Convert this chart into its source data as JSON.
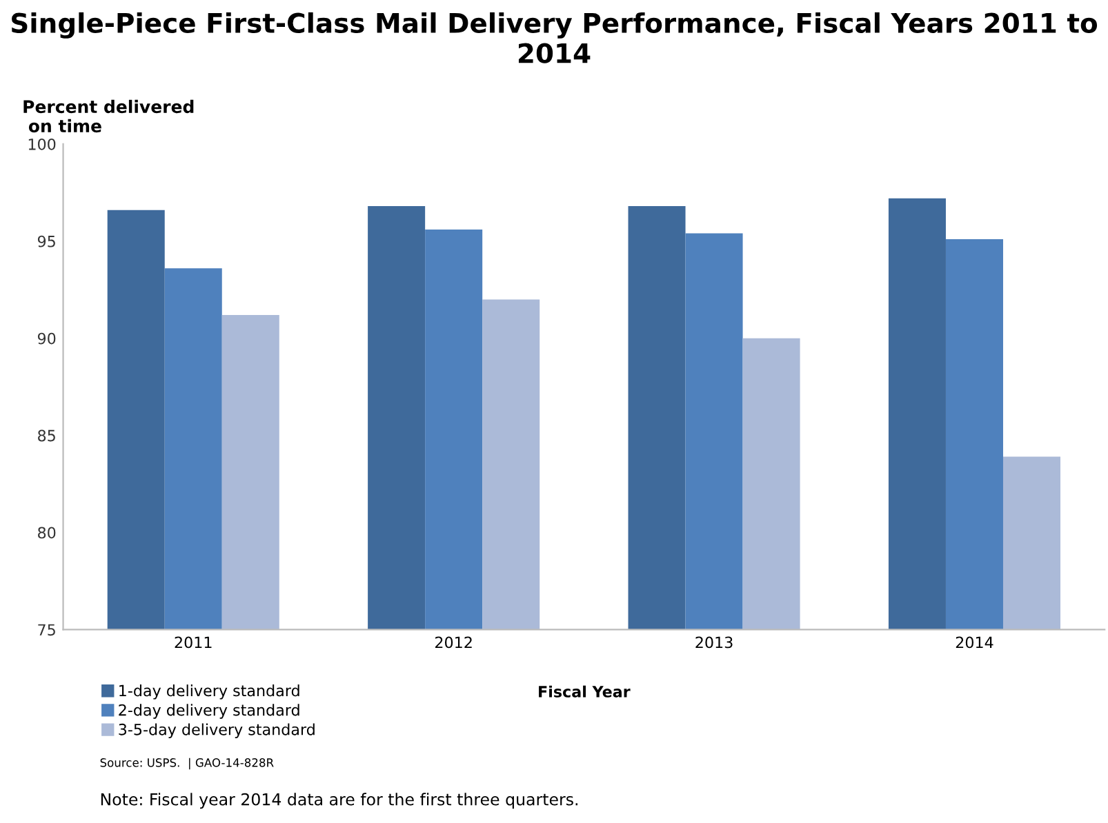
{
  "chart_data": {
    "type": "bar",
    "title": "Single-Piece First-Class Mail Delivery Performance, Fiscal Years 2011 to 2014",
    "ylabel": "Percent delivered\n on time",
    "xlabel": "Fiscal Year",
    "categories": [
      "2011",
      "2012",
      "2013",
      "2014"
    ],
    "series": [
      {
        "name": "1-day delivery standard",
        "color": "#3f6a9b",
        "values": [
          96.6,
          96.8,
          96.8,
          97.2
        ]
      },
      {
        "name": "2-day delivery standard",
        "color": "#4f81bd",
        "values": [
          93.6,
          95.6,
          95.4,
          95.1
        ]
      },
      {
        "name": "3-5-day delivery standard",
        "color": "#abbad8",
        "values": [
          91.2,
          92.0,
          90.0,
          83.9
        ]
      }
    ],
    "ylim": [
      75,
      100
    ],
    "yticks": [
      75,
      80,
      85,
      90,
      95,
      100
    ],
    "grid": false,
    "legend": "bottom left",
    "annotations": [
      "Source: USPS.  | GAO-14-828R",
      "Note: Fiscal year 2014 data are for the first three quarters."
    ]
  }
}
